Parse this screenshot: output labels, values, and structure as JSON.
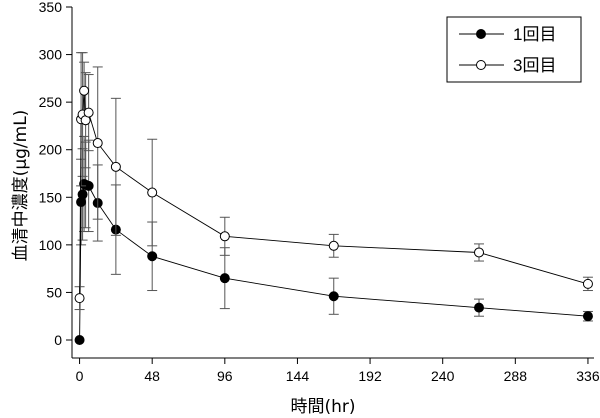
{
  "chart_data": {
    "type": "line",
    "title": "",
    "xlabel": "時間(hr)",
    "ylabel": "血清中濃度(μg/mL)",
    "xlim": [
      -5,
      340
    ],
    "ylim": [
      0,
      350
    ],
    "xticks": [
      0,
      48,
      96,
      144,
      192,
      240,
      288,
      336
    ],
    "yticks": [
      0,
      50,
      100,
      150,
      200,
      250,
      300,
      350
    ],
    "grid": false,
    "legend_position": "top-right",
    "series": [
      {
        "name": "1回目",
        "marker": "filled-circle",
        "color": "#000000",
        "points": [
          {
            "x": 0,
            "y": 0,
            "err": 0
          },
          {
            "x": 1,
            "y": 145,
            "err": 45
          },
          {
            "x": 2,
            "y": 153,
            "err": 48
          },
          {
            "x": 3,
            "y": 164,
            "err": 50
          },
          {
            "x": 4,
            "y": 163,
            "err": 45
          },
          {
            "x": 6,
            "y": 162,
            "err": 48
          },
          {
            "x": 12,
            "y": 144,
            "err": 40
          },
          {
            "x": 24,
            "y": 116,
            "err": 47
          },
          {
            "x": 48,
            "y": 88,
            "err": 36
          },
          {
            "x": 96,
            "y": 65,
            "err": 32
          },
          {
            "x": 168,
            "y": 46,
            "err": 19
          },
          {
            "x": 264,
            "y": 34,
            "err": 9
          },
          {
            "x": 336,
            "y": 25,
            "err": 5
          }
        ]
      },
      {
        "name": "3回目",
        "marker": "open-circle",
        "color": "#000000",
        "points": [
          {
            "x": 0,
            "y": 44,
            "err": 12
          },
          {
            "x": 1,
            "y": 232,
            "err": 70
          },
          {
            "x": 2,
            "y": 237,
            "err": 65
          },
          {
            "x": 3,
            "y": 262,
            "err": 30
          },
          {
            "x": 4,
            "y": 231,
            "err": 50
          },
          {
            "x": 6,
            "y": 239,
            "err": 40
          },
          {
            "x": 12,
            "y": 207,
            "err": 80
          },
          {
            "x": 24,
            "y": 182,
            "err": 72
          },
          {
            "x": 48,
            "y": 155,
            "err": 56
          },
          {
            "x": 96,
            "y": 109,
            "err": 20
          },
          {
            "x": 168,
            "y": 99,
            "err": 12
          },
          {
            "x": 264,
            "y": 92,
            "err": 9
          },
          {
            "x": 336,
            "y": 59,
            "err": 7
          }
        ]
      }
    ]
  }
}
